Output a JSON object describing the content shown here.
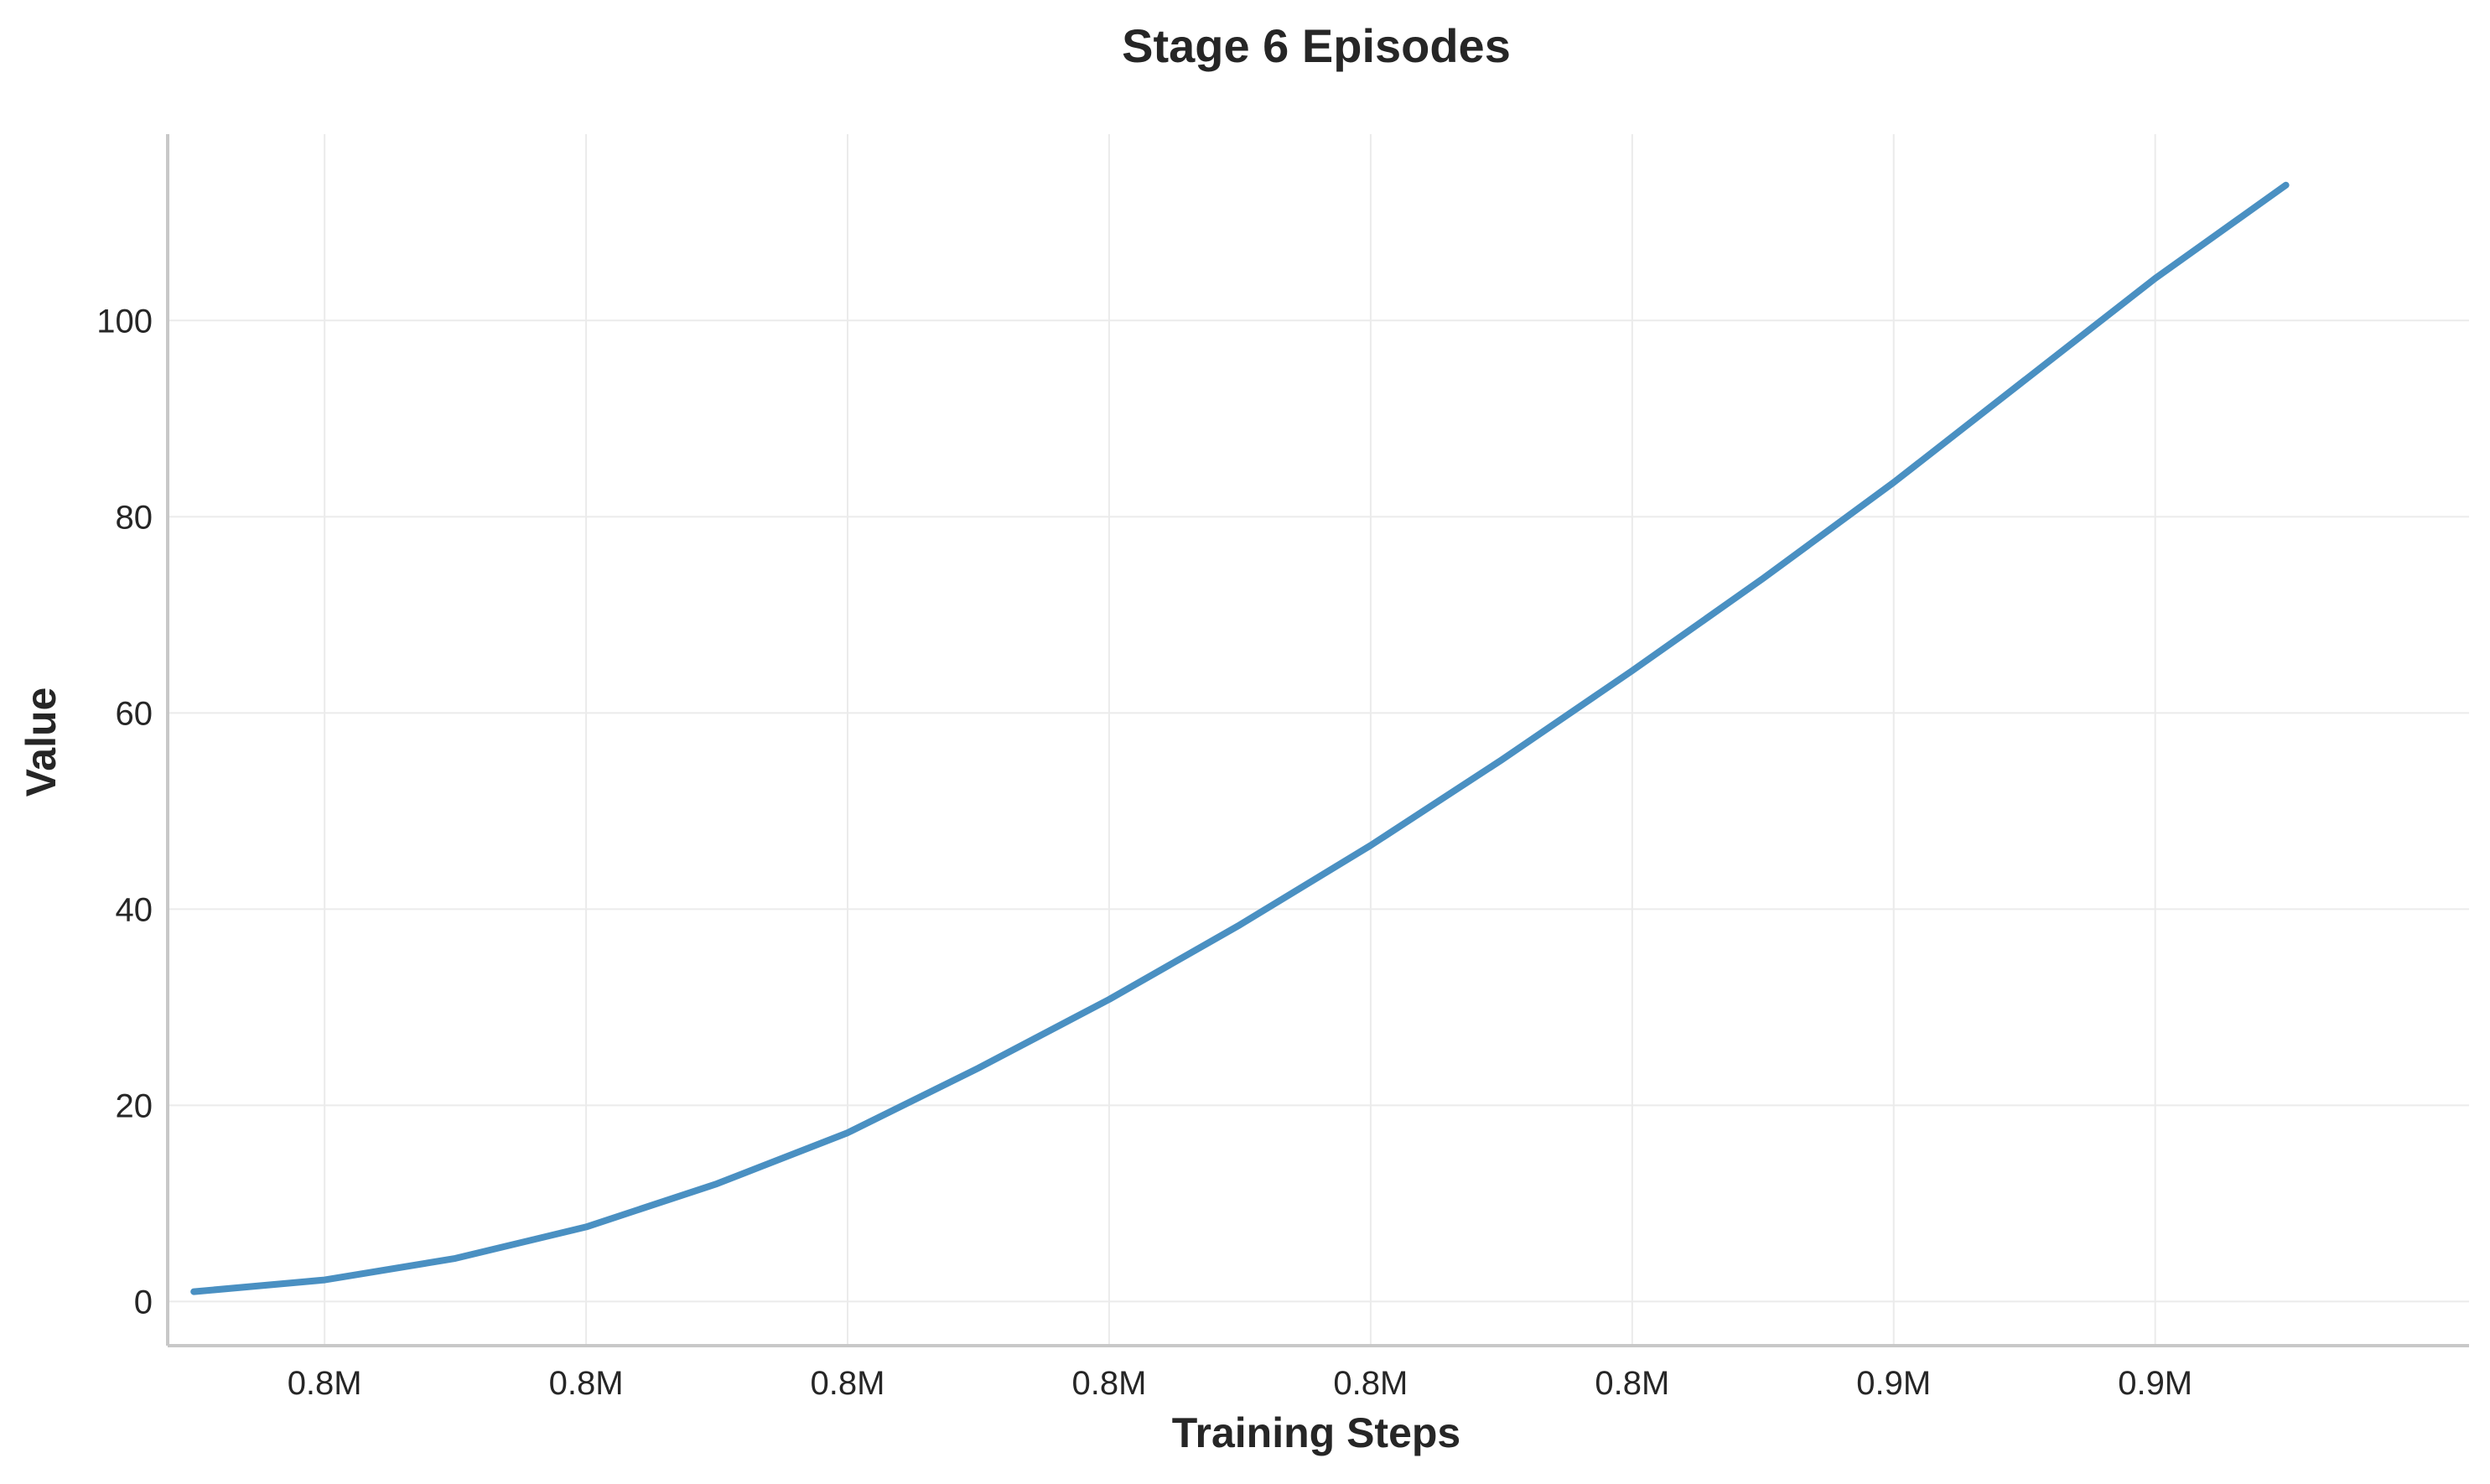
{
  "chart_data": {
    "type": "line",
    "title": "Stage 6 Episodes",
    "xlabel": "Training Steps",
    "ylabel": "Value",
    "x_ticks": [
      {
        "value": 2,
        "label": "0.8M"
      },
      {
        "value": 4,
        "label": "0.8M"
      },
      {
        "value": 6,
        "label": "0.8M"
      },
      {
        "value": 8,
        "label": "0.8M"
      },
      {
        "value": 10,
        "label": "0.8M"
      },
      {
        "value": 12,
        "label": "0.8M"
      },
      {
        "value": 14,
        "label": "0.9M"
      },
      {
        "value": 16,
        "label": "0.9M"
      }
    ],
    "y_ticks": [
      0,
      20,
      40,
      60,
      80,
      100
    ],
    "xlim": [
      0.8,
      18.4
    ],
    "ylim": [
      -4.5,
      119
    ],
    "grid": true,
    "series": [
      {
        "color": "#4a90c2",
        "x": [
          1,
          2,
          3,
          4,
          5,
          6,
          7,
          8,
          9,
          10,
          11,
          12,
          13,
          14,
          15,
          16,
          17
        ],
        "y": [
          1.0,
          2.2,
          4.4,
          7.6,
          12.0,
          17.2,
          23.8,
          30.8,
          38.4,
          46.5,
          55.2,
          64.3,
          73.7,
          83.5,
          93.9,
          104.3,
          113.8
        ]
      }
    ]
  }
}
